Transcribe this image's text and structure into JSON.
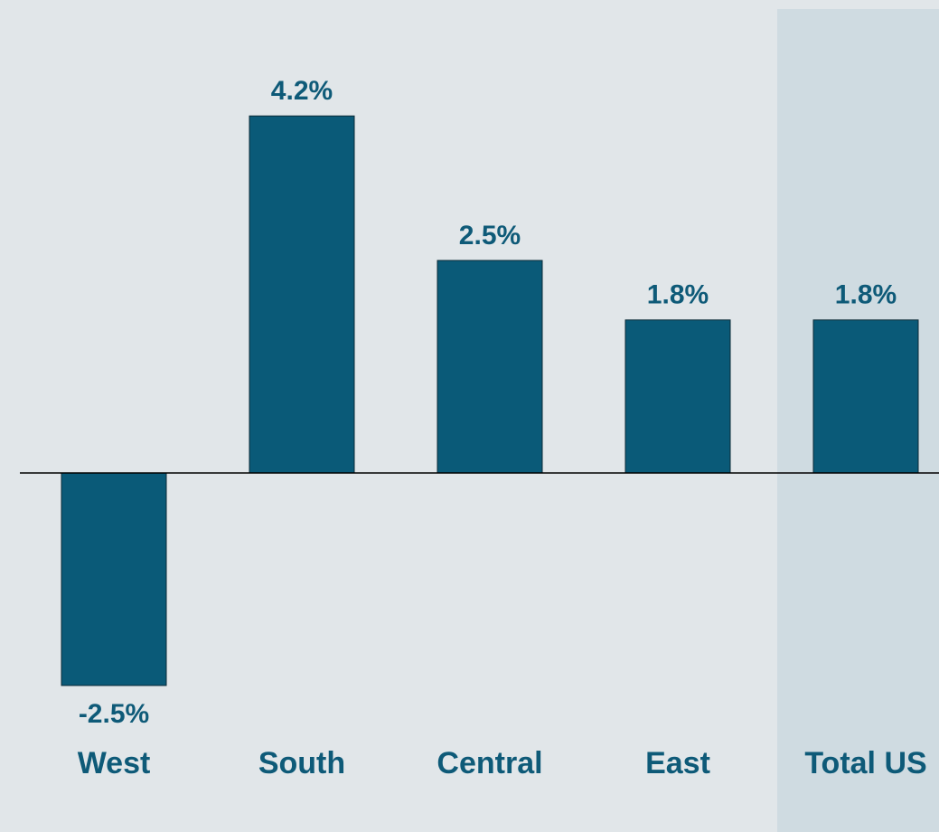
{
  "chart_data": {
    "type": "bar",
    "categories": [
      "West",
      "South",
      "Central",
      "East",
      "Total US"
    ],
    "values": [
      -2.5,
      4.2,
      2.5,
      1.8,
      1.8
    ],
    "value_labels": [
      "-2.5%",
      "4.2%",
      "2.5%",
      "1.8%",
      "1.8%"
    ],
    "color": "#0a5a78",
    "ylim": [
      -4,
      5
    ]
  }
}
